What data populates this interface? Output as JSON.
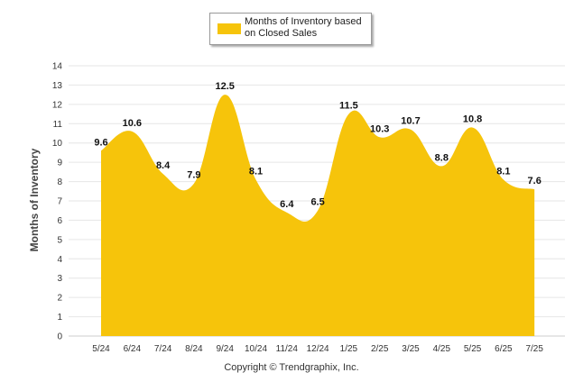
{
  "chart_data": {
    "type": "area",
    "categories": [
      "5/24",
      "6/24",
      "7/24",
      "8/24",
      "9/24",
      "10/24",
      "11/24",
      "12/24",
      "1/25",
      "2/25",
      "3/25",
      "4/25",
      "5/25",
      "6/25",
      "7/25"
    ],
    "series": [
      {
        "name": "Months of Inventory based on Closed Sales",
        "values": [
          9.6,
          10.6,
          8.4,
          7.9,
          12.5,
          8.1,
          6.4,
          6.5,
          11.5,
          10.3,
          10.7,
          8.8,
          10.8,
          8.1,
          7.6
        ]
      }
    ],
    "title": "",
    "xlabel": "",
    "ylabel": "Months of Inventory",
    "ylim": [
      0,
      14
    ],
    "yticks": [
      0,
      1,
      2,
      3,
      4,
      5,
      6,
      7,
      8,
      9,
      10,
      11,
      12,
      13,
      14
    ],
    "grid": true,
    "legend": "top-center",
    "colors": {
      "area": "#F6C40B",
      "grid": "#E6E6E6"
    }
  },
  "legend": {
    "line1": "Months of Inventory based",
    "line2": "on Closed Sales"
  },
  "footer": "Copyright © Trendgraphix, Inc."
}
